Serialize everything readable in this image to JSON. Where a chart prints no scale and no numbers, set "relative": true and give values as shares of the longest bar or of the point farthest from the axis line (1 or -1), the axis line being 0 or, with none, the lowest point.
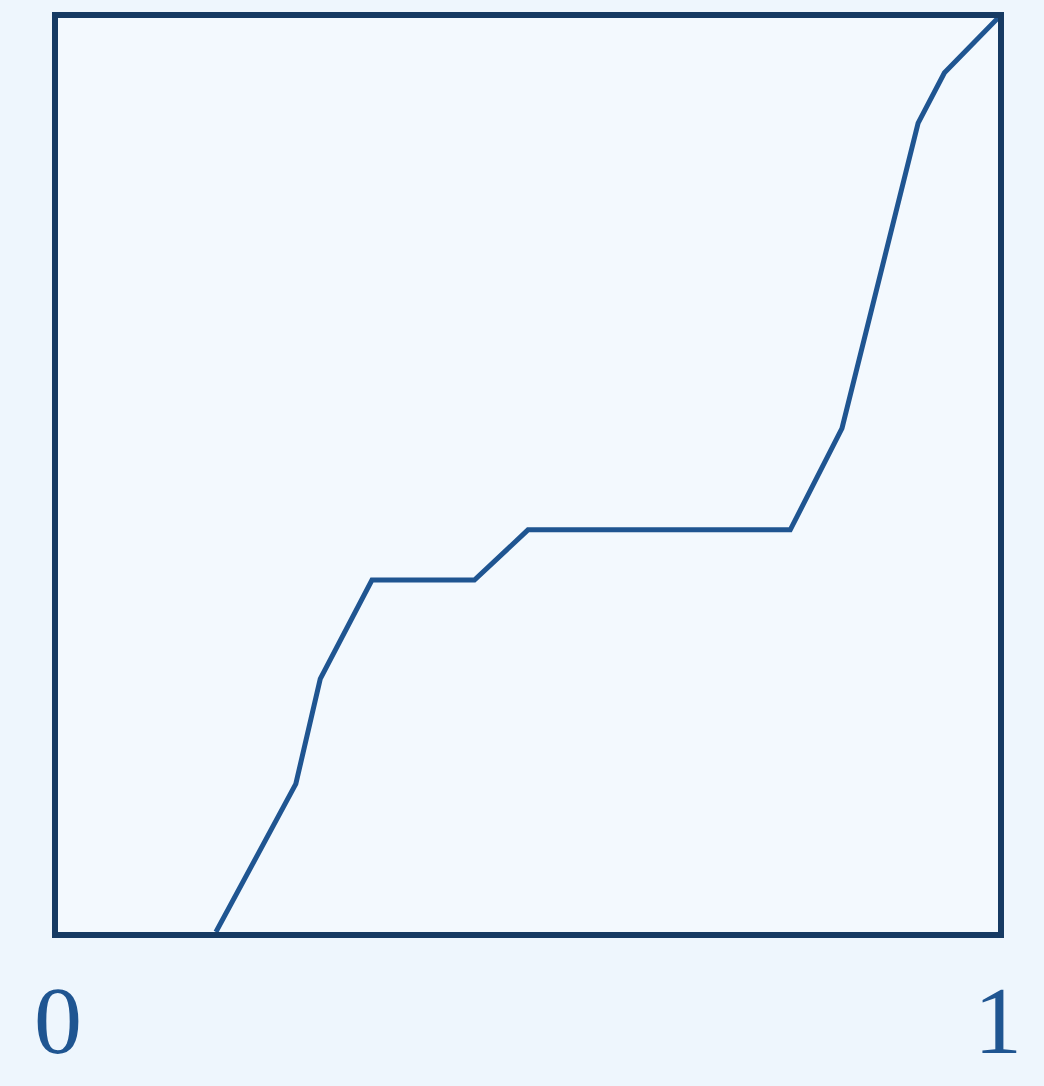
{
  "chart_data": {
    "type": "line",
    "relative": true,
    "x": [
      0.168,
      0.253,
      0.279,
      0.334,
      0.443,
      0.5,
      0.779,
      0.834,
      0.915,
      0.943,
      1
    ],
    "series": [
      {
        "color": "#1f5591",
        "values": [
          0,
          0.162,
          0.277,
          0.385,
          0.385,
          0.44,
          0.44,
          0.551,
          0.885,
          0.94,
          1
        ]
      }
    ],
    "xlim": [
      0,
      1
    ],
    "xticks": [
      0,
      1
    ],
    "tick_labels": "x",
    "grid": false,
    "legend": false,
    "marker": "none",
    "line_style": "solid"
  }
}
